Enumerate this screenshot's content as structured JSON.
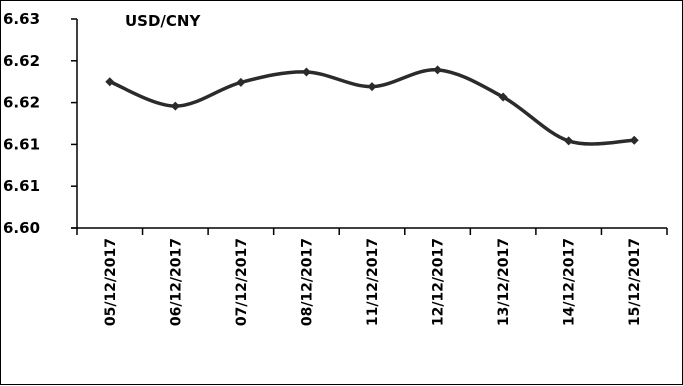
{
  "chart_data": {
    "type": "line",
    "title": "USD/CNY",
    "xlabel": "",
    "ylabel": "",
    "categories": [
      "05/12/2017",
      "06/12/2017",
      "07/12/2017",
      "08/12/2017",
      "11/12/2017",
      "12/12/2017",
      "13/12/2017",
      "14/12/2017",
      "15/12/2017"
    ],
    "y_tick_labels": [
      "6.60",
      "6.61",
      "6.61",
      "6.62",
      "6.62",
      "6.63"
    ],
    "ylim": [
      6.6,
      6.63
    ],
    "grid": false,
    "legend": "none",
    "series": [
      {
        "values": [
          6.621,
          6.6175,
          6.6209,
          6.6224,
          6.6203,
          6.6227,
          6.6188,
          6.6125,
          6.6126
        ]
      }
    ],
    "colors": {
      "line": "#2b2b2b",
      "axis": "#000000"
    }
  }
}
